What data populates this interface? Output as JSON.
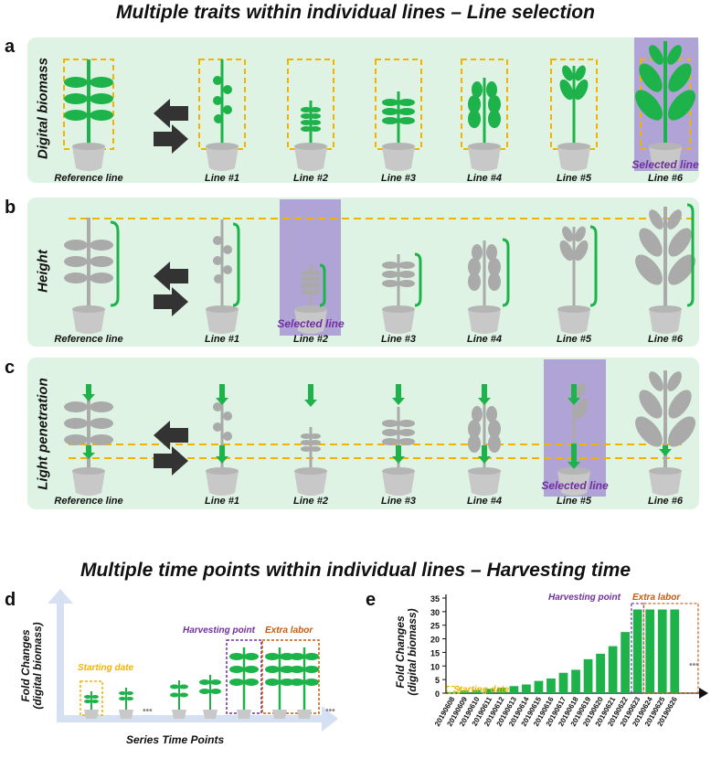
{
  "titles": {
    "top": "Multiple traits within individual lines  – Line selection",
    "bottom": "Multiple time points within individual lines  – Harvesting time"
  },
  "panels": [
    {
      "letter": "a",
      "side_label": "Digital biomass",
      "selected": "Selected line"
    },
    {
      "letter": "b",
      "side_label": "Height",
      "selected": "Selected line"
    },
    {
      "letter": "c",
      "side_label": "Light penetration",
      "selected": "Selected line"
    }
  ],
  "lines": [
    "Reference line",
    "Line #1",
    "Line #2",
    "Line #3",
    "Line #4",
    "Line #5",
    "Line #6"
  ],
  "panel_d": {
    "letter": "d",
    "y_label": [
      "Fold Changes",
      "(digital biomass)"
    ],
    "x_label": "Series Time Points",
    "starting": "Starting date",
    "harvest": "Harvesting point",
    "extra": "Extra labor",
    "ellipsis": "•••"
  },
  "panel_e": {
    "letter": "e",
    "starting": "Starting date",
    "harvest": "Harvesting point",
    "extra": "Extra labor",
    "ellipsis": "•••"
  },
  "colors": {
    "green": "#1db34a",
    "gray": "#aaaaaa",
    "purple": "#7030a0",
    "orange": "#c55a11",
    "yellow": "#f0b400",
    "panel": "#dff3e4"
  },
  "chart_data": {
    "type": "bar",
    "categories": [
      "20190608",
      "20190609",
      "20190610",
      "20190611",
      "20190612",
      "20190613",
      "20190614",
      "20190615",
      "20190616",
      "20190617",
      "20190618",
      "20190619",
      "20190620",
      "20190621",
      "20190622",
      "20190623",
      "20190624",
      "20190625",
      "20190626"
    ],
    "values": [
      0.4,
      1.0,
      1.2,
      1.6,
      2.0,
      2.6,
      3.2,
      4.5,
      5.4,
      7.5,
      8.6,
      12.5,
      14.5,
      17.3,
      22.5,
      30.8,
      30.8,
      30.8,
      30.8
    ],
    "ylabel": "Fold Changes\n(digital biomass)",
    "ylim": [
      0,
      35
    ],
    "yticks": [
      0,
      5,
      10,
      15,
      20,
      25,
      30,
      35
    ]
  }
}
